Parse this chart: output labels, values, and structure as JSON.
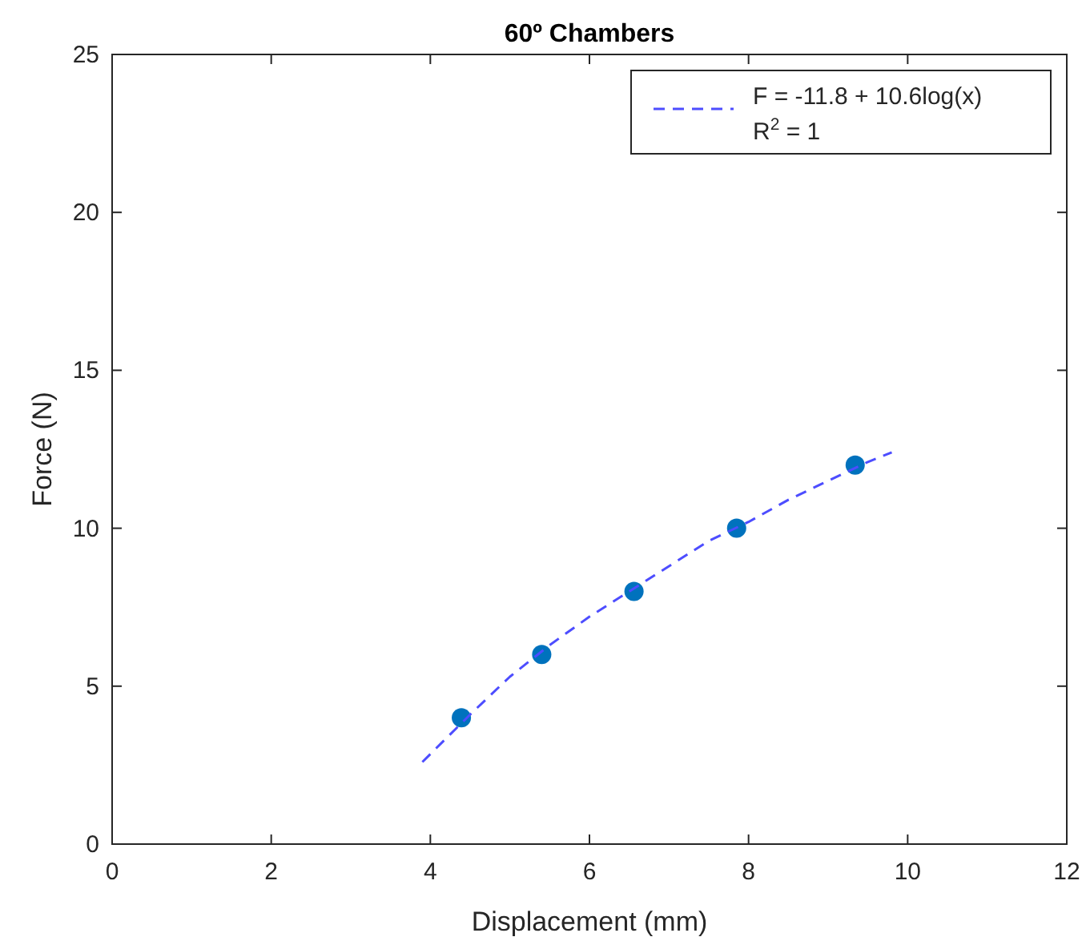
{
  "chart_data": {
    "type": "scatter",
    "title": "60º Chambers",
    "xlabel": "Displacement (mm)",
    "ylabel": "Force (N)",
    "xlim": [
      0,
      12
    ],
    "xticks": [
      0,
      2,
      4,
      6,
      8,
      10,
      12
    ],
    "ylim": [
      0,
      25
    ],
    "yticks": [
      0,
      5,
      10,
      15,
      20,
      25
    ],
    "grid": false,
    "legend": "top right",
    "series": [
      {
        "color": "#0072bd",
        "marker": "circle",
        "x": [
          4.39,
          5.4,
          6.56,
          7.85,
          9.34
        ],
        "values": [
          4,
          6,
          8,
          10,
          12
        ]
      },
      {
        "type": "line",
        "name": "F = -11.8 + 10.6log(x)",
        "color": "#4d4dff",
        "line_style": "dashed",
        "marker": "none",
        "x": [
          3.9,
          4.5,
          5,
          5.5,
          6,
          6.5,
          7,
          7.5,
          8,
          8.5,
          9,
          9.5,
          9.8
        ],
        "values": [
          2.6,
          4.1,
          5.3,
          6.3,
          7.2,
          8.0,
          8.8,
          9.6,
          10.2,
          10.9,
          11.5,
          12.1,
          12.4
        ]
      }
    ],
    "annotations": [
      "R$^{2}$ = 1"
    ]
  }
}
